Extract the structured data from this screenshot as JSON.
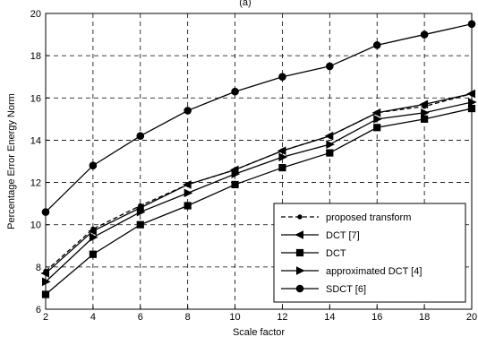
{
  "chart_data": {
    "type": "line",
    "top_label": "(a)",
    "xlabel": "Scale factor",
    "ylabel": "Percentage Error Energy Norm",
    "xlim": [
      2,
      20
    ],
    "ylim": [
      6,
      20
    ],
    "xticks": [
      2,
      4,
      6,
      8,
      10,
      12,
      14,
      16,
      18,
      20
    ],
    "yticks": [
      6,
      8,
      10,
      12,
      14,
      16,
      18,
      20
    ],
    "grid": "dashed",
    "legend_position": "bottom-right",
    "x": [
      2,
      4,
      6,
      8,
      10,
      12,
      14,
      16,
      18,
      20
    ],
    "series": [
      {
        "name": "proposed transform",
        "marker": "dot",
        "dashed": true,
        "values": [
          7.8,
          9.8,
          10.9,
          11.9,
          12.6,
          13.5,
          14.2,
          15.3,
          15.6,
          16.2
        ]
      },
      {
        "name": "DCT [7]",
        "marker": "triangle-left",
        "dashed": false,
        "values": [
          7.7,
          9.7,
          10.8,
          11.9,
          12.6,
          13.5,
          14.2,
          15.3,
          15.7,
          16.2
        ]
      },
      {
        "name": "DCT",
        "marker": "square",
        "dashed": false,
        "values": [
          6.7,
          8.6,
          10.0,
          10.9,
          11.9,
          12.7,
          13.4,
          14.6,
          15.0,
          15.5
        ]
      },
      {
        "name": "approximated DCT [4]",
        "marker": "triangle-right",
        "dashed": false,
        "values": [
          7.3,
          9.4,
          10.6,
          11.5,
          12.4,
          13.2,
          13.8,
          15.0,
          15.3,
          15.8
        ]
      },
      {
        "name": "SDCT [6]",
        "marker": "circle",
        "dashed": false,
        "values": [
          10.6,
          12.8,
          14.2,
          15.4,
          16.3,
          17.0,
          17.5,
          18.5,
          19.0,
          19.5
        ]
      }
    ]
  }
}
